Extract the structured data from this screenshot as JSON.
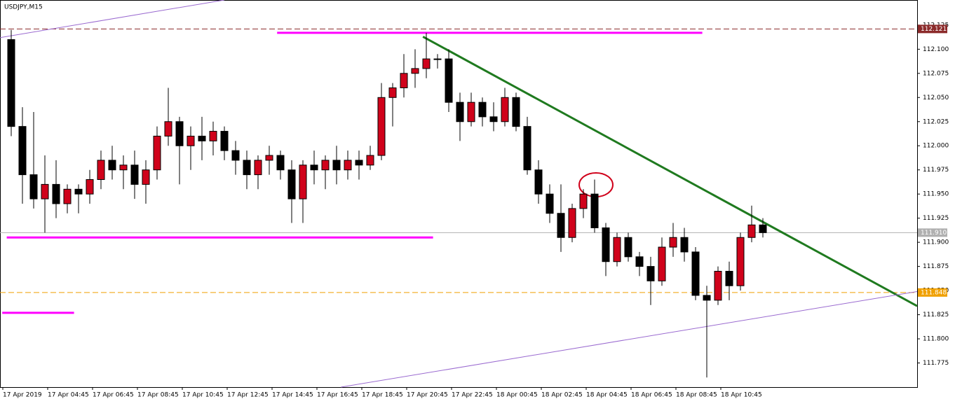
{
  "chart_data": {
    "type": "candlestick",
    "title": "USDJPY,M15",
    "categories": [
      "17 Apr 2019",
      null,
      null,
      null,
      "17 Apr 04:45",
      null,
      null,
      null,
      "17 Apr 06:45",
      null,
      null,
      null,
      "17 Apr 08:45",
      null,
      null,
      null,
      "17 Apr 10:45",
      null,
      null,
      null,
      "17 Apr 12:45",
      null,
      null,
      null,
      "17 Apr 14:45",
      null,
      null,
      null,
      "17 Apr 16:45",
      null,
      null,
      null,
      "17 Apr 18:45",
      null,
      null,
      null,
      "17 Apr 20:45",
      null,
      null,
      null,
      "17 Apr 22:45",
      null,
      null,
      null,
      "18 Apr 00:45",
      null,
      null,
      null,
      "18 Apr 02:45",
      null,
      null,
      null,
      "18 Apr 04:45",
      null,
      null,
      null,
      "18 Apr 06:45",
      null,
      null,
      null,
      "18 Apr 08:45",
      null,
      null,
      null,
      "18 Apr 10:45",
      null,
      null,
      null
    ],
    "open": [
      112.11,
      112.02,
      111.97,
      111.945,
      111.96,
      111.94,
      111.955,
      111.95,
      111.965,
      111.985,
      111.975,
      111.98,
      111.96,
      111.975,
      112.01,
      112.025,
      112.0,
      112.01,
      112.005,
      112.015,
      111.995,
      111.985,
      111.97,
      111.985,
      111.99,
      111.975,
      111.945,
      111.98,
      111.975,
      111.985,
      111.975,
      111.985,
      111.98,
      111.99,
      112.05,
      112.06,
      112.075,
      112.08,
      112.09,
      112.09,
      112.045,
      112.025,
      112.045,
      112.03,
      112.025,
      112.05,
      112.02,
      111.975,
      111.95,
      111.93,
      111.905,
      111.935,
      111.95,
      111.915,
      111.88,
      111.905,
      111.885,
      111.875,
      111.86,
      111.895,
      111.905,
      111.89,
      111.845,
      111.84,
      111.87,
      111.855,
      111.905,
      111.918
    ],
    "high": [
      112.12,
      112.04,
      112.035,
      111.99,
      111.985,
      111.96,
      111.96,
      111.975,
      111.995,
      112.0,
      111.99,
      111.995,
      111.985,
      112.02,
      112.06,
      112.03,
      112.02,
      112.03,
      112.025,
      112.02,
      112.005,
      111.995,
      111.99,
      112.0,
      111.995,
      111.985,
      111.985,
      111.995,
      111.99,
      112.0,
      111.995,
      111.995,
      112.0,
      112.065,
      112.065,
      112.095,
      112.1,
      112.117,
      112.095,
      112.1,
      112.055,
      112.055,
      112.05,
      112.045,
      112.06,
      112.055,
      112.03,
      111.985,
      111.96,
      111.96,
      111.94,
      111.955,
      111.965,
      111.92,
      111.91,
      111.91,
      111.89,
      111.885,
      111.905,
      111.92,
      111.915,
      111.895,
      111.855,
      111.875,
      111.88,
      111.91,
      111.938,
      111.925
    ],
    "low": [
      112.01,
      111.94,
      111.935,
      111.91,
      111.925,
      111.93,
      111.93,
      111.94,
      111.955,
      111.965,
      111.955,
      111.945,
      111.94,
      111.965,
      112.0,
      111.96,
      111.975,
      111.985,
      111.99,
      111.985,
      111.97,
      111.955,
      111.955,
      111.97,
      111.965,
      111.92,
      111.92,
      111.96,
      111.955,
      111.96,
      111.965,
      111.965,
      111.975,
      111.985,
      112.02,
      112.05,
      112.06,
      112.07,
      112.08,
      112.035,
      112.005,
      112.02,
      112.02,
      112.015,
      112.02,
      112.015,
      111.97,
      111.94,
      111.92,
      111.89,
      111.9,
      111.925,
      111.91,
      111.865,
      111.875,
      111.88,
      111.865,
      111.835,
      111.855,
      111.885,
      111.88,
      111.84,
      111.76,
      111.835,
      111.84,
      111.85,
      111.9,
      111.905
    ],
    "close": [
      112.02,
      111.97,
      111.945,
      111.96,
      111.94,
      111.955,
      111.95,
      111.965,
      111.985,
      111.975,
      111.98,
      111.96,
      111.975,
      112.01,
      112.025,
      112.0,
      112.01,
      112.005,
      112.015,
      111.995,
      111.985,
      111.97,
      111.985,
      111.99,
      111.975,
      111.945,
      111.98,
      111.975,
      111.985,
      111.975,
      111.985,
      111.98,
      111.99,
      112.05,
      112.06,
      112.075,
      112.08,
      112.09,
      112.09,
      112.045,
      112.025,
      112.045,
      112.03,
      112.025,
      112.05,
      112.02,
      111.975,
      111.95,
      111.93,
      111.905,
      111.935,
      111.95,
      111.915,
      111.88,
      111.905,
      111.885,
      111.875,
      111.86,
      111.895,
      111.905,
      111.89,
      111.845,
      111.84,
      111.87,
      111.855,
      111.905,
      111.918,
      111.91
    ],
    "up_color": "#d0021b",
    "down_color": "#000000",
    "xlim": [
      -1,
      80.75
    ],
    "ylim": [
      111.75,
      112.151
    ],
    "yticks": [
      112.125,
      {
        "value": 112.1,
        "label": "112.100"
      },
      112.075,
      {
        "value": 112.05,
        "label": "112.050"
      },
      112.025,
      {
        "value": 112.0,
        "label": "112.000"
      },
      111.975,
      {
        "value": 111.95,
        "label": "111.950"
      },
      111.925,
      {
        "value": 111.9,
        "label": "111.900"
      },
      111.875,
      {
        "value": 111.85,
        "label": "111.850"
      },
      111.825,
      {
        "value": 111.8,
        "label": "111.800"
      },
      111.775
    ],
    "levels": [
      {
        "value": 112.121,
        "color": "#8b2a2a",
        "dash": true
      },
      {
        "value": 111.848,
        "color": "#f0a000",
        "dash": true
      },
      {
        "value": 111.91,
        "color": "#b0b0b0",
        "dash": false
      }
    ],
    "segments": [
      {
        "x": [
          36.7,
          80.75
        ],
        "y": [
          112.113,
          111.834
        ],
        "color": "#1f7a1f",
        "width": 3
      },
      {
        "x": [
          -1,
          19
        ],
        "y": [
          112.112,
          112.151
        ],
        "color": "#9a6ad0",
        "width": 1
      },
      {
        "x": [
          29.4,
          80.75
        ],
        "y": [
          111.75,
          111.849
        ],
        "color": "#9a6ad0",
        "width": 1
      },
      {
        "x": [
          23.7,
          61.6
        ],
        "y": [
          112.117,
          112.117
        ],
        "color": "#ff00ff",
        "width": 3
      },
      {
        "x": [
          -0.4,
          37.6
        ],
        "y": [
          111.905,
          111.905
        ],
        "color": "#ff00ff",
        "width": 3
      },
      {
        "x": [
          -0.8,
          5.6
        ],
        "y": [
          111.827,
          111.827
        ],
        "color": "#ff00ff",
        "width": 3
      }
    ],
    "price_tags": [
      {
        "value": 112.121,
        "label": "112.121",
        "color": "#8b2a2a"
      },
      {
        "value": 111.91,
        "label": "111.910",
        "color": "#b0b0b0"
      },
      {
        "value": 111.848,
        "label": "111.848",
        "color": "#f0a000"
      }
    ]
  }
}
